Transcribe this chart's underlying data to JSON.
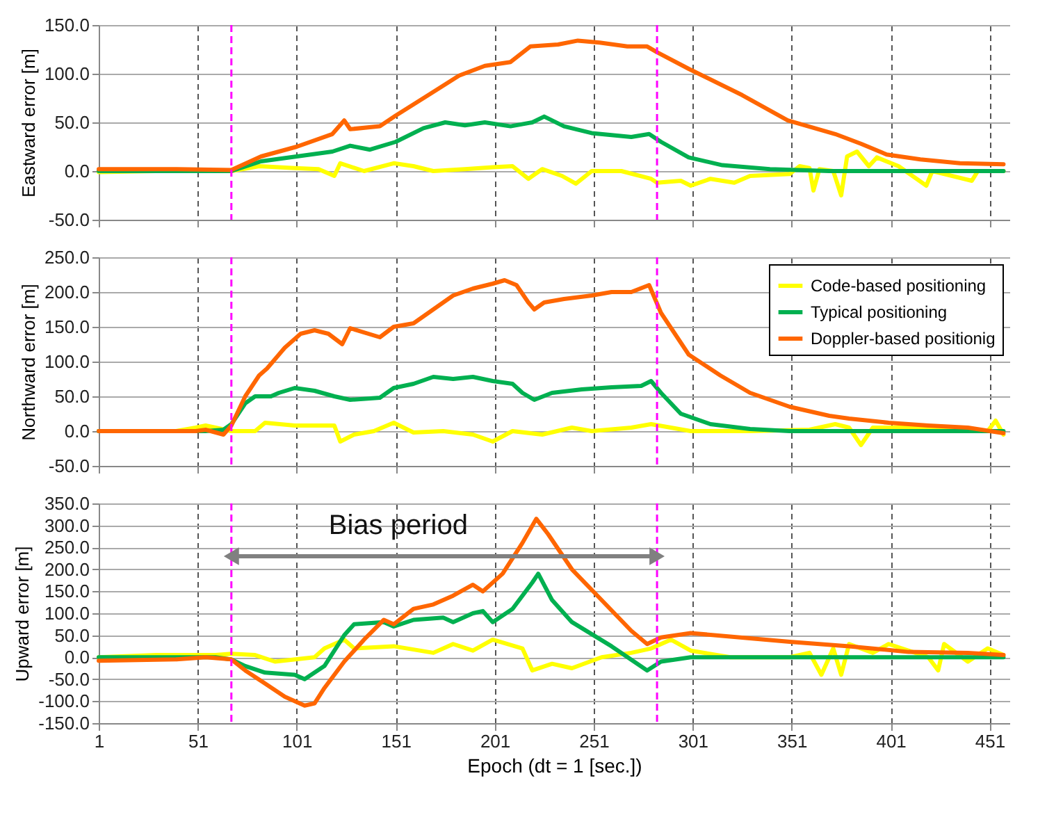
{
  "chart_data": [
    {
      "type": "line",
      "ylabel": "Eastward error [m]",
      "xlim": [
        1,
        461
      ],
      "xticks": [
        1,
        51,
        101,
        151,
        201,
        251,
        301,
        351,
        401,
        451
      ],
      "ylim": [
        -50,
        150
      ],
      "yticks": [
        {
          "value": -50,
          "label": "-50.0"
        },
        {
          "value": 0,
          "label": "0.0"
        },
        {
          "value": 50,
          "label": "50.0"
        },
        {
          "value": 100,
          "label": "100.0"
        },
        {
          "value": 150,
          "label": "150.0"
        }
      ],
      "grid": true,
      "tick_labels": "y",
      "legend": false,
      "ref_lines": [
        {
          "axis": "x",
          "value": 68,
          "color": "#ff00ff",
          "line_style": "dashed"
        },
        {
          "axis": "x",
          "value": 283,
          "color": "#ff00ff",
          "line_style": "dashed"
        }
      ],
      "series": [
        {
          "color": "#ffff00",
          "x": [
            1,
            30,
            68,
            82,
            100,
            112,
            120,
            123,
            135,
            150,
            160,
            170,
            186,
            200,
            210,
            218,
            225,
            235,
            242,
            250,
            265,
            280,
            283,
            295,
            300,
            310,
            322,
            330,
            350,
            355,
            360,
            362,
            365,
            372,
            376,
            379,
            384,
            390,
            394,
            405,
            419,
            422,
            442,
            445,
            458
          ],
          "values": [
            -1,
            0,
            0,
            5,
            3,
            2,
            -5,
            8,
            0,
            8,
            5,
            0,
            2,
            4,
            5,
            -8,
            2,
            -5,
            -13,
            0,
            0,
            -8,
            -12,
            -10,
            -15,
            -8,
            -12,
            -5,
            -3,
            5,
            3,
            -20,
            2,
            0,
            -25,
            15,
            20,
            5,
            14,
            5,
            -15,
            0,
            -10,
            0,
            0
          ]
        },
        {
          "color": "#00b050",
          "x": [
            1,
            68,
            83,
            101,
            119,
            128,
            138,
            151,
            165,
            176,
            186,
            196,
            209,
            220,
            226,
            236,
            250,
            270,
            279,
            285,
            299,
            316,
            340,
            370,
            458
          ],
          "values": [
            0,
            0,
            10,
            15,
            20,
            26,
            22,
            30,
            44,
            50,
            47,
            50,
            46,
            50,
            56,
            46,
            39,
            35,
            38,
            30,
            14,
            6,
            2,
            0,
            0
          ]
        },
        {
          "color": "#ff6600",
          "x": [
            1,
            40,
            68,
            83,
            101,
            119,
            125,
            128,
            143,
            151,
            169,
            183,
            196,
            209,
            219,
            233,
            243,
            254,
            268,
            278,
            283,
            299,
            326,
            349,
            373,
            386,
            399,
            416,
            436,
            458
          ],
          "values": [
            2,
            2,
            1,
            15,
            25,
            38,
            52,
            43,
            46,
            57,
            80,
            98,
            108,
            112,
            128,
            130,
            134,
            132,
            128,
            128,
            122,
            105,
            78,
            52,
            38,
            28,
            17,
            12,
            8,
            7
          ]
        }
      ]
    },
    {
      "type": "line",
      "ylabel": "Northward error [m]",
      "xlim": [
        1,
        461
      ],
      "xticks": [
        1,
        51,
        101,
        151,
        201,
        251,
        301,
        351,
        401,
        451
      ],
      "ylim": [
        -50,
        250
      ],
      "yticks": [
        {
          "value": -50,
          "label": "-50.0"
        },
        {
          "value": 0,
          "label": "0.0"
        },
        {
          "value": 50,
          "label": "50.0"
        },
        {
          "value": 100,
          "label": "100.0"
        },
        {
          "value": 150,
          "label": "150.0"
        },
        {
          "value": 200,
          "label": "200.0"
        },
        {
          "value": 250,
          "label": "250.0"
        }
      ],
      "grid": true,
      "tick_labels": "y",
      "legend": "top right",
      "ref_lines": [
        {
          "axis": "x",
          "value": 68,
          "color": "#ff00ff",
          "line_style": "dashed"
        },
        {
          "axis": "x",
          "value": 283,
          "color": "#ff00ff",
          "line_style": "dashed"
        }
      ],
      "series": [
        {
          "name": "Code-based positioning",
          "color": "#ffff00",
          "x": [
            1,
            40,
            50,
            55,
            60,
            68,
            80,
            85,
            100,
            120,
            123,
            130,
            140,
            150,
            160,
            175,
            190,
            200,
            210,
            225,
            240,
            250,
            270,
            280,
            290,
            300,
            330,
            360,
            373,
            380,
            386,
            392,
            420,
            450,
            454,
            458
          ],
          "values": [
            0,
            0,
            5,
            8,
            5,
            0,
            0,
            12,
            8,
            8,
            -15,
            -5,
            0,
            12,
            -2,
            0,
            -5,
            -15,
            0,
            -5,
            5,
            0,
            5,
            10,
            5,
            0,
            0,
            2,
            10,
            5,
            -20,
            5,
            5,
            0,
            15,
            -5
          ]
        },
        {
          "name": "Typical positioning",
          "color": "#00b050",
          "x": [
            1,
            55,
            64,
            68,
            75,
            80,
            88,
            92,
            100,
            110,
            120,
            128,
            143,
            150,
            160,
            170,
            180,
            190,
            200,
            210,
            215,
            221,
            230,
            245,
            260,
            275,
            280,
            285,
            295,
            310,
            330,
            350,
            458
          ],
          "values": [
            0,
            0,
            2,
            10,
            40,
            50,
            50,
            55,
            62,
            58,
            50,
            45,
            48,
            62,
            68,
            78,
            75,
            78,
            72,
            68,
            55,
            45,
            55,
            60,
            63,
            65,
            72,
            55,
            25,
            10,
            3,
            0,
            0
          ]
        },
        {
          "name": "Doppler-based positionig",
          "color": "#ff6600",
          "x": [
            1,
            50,
            55,
            64,
            68,
            75,
            82,
            86,
            95,
            103,
            110,
            117,
            124,
            128,
            143,
            150,
            160,
            170,
            180,
            190,
            200,
            206,
            212,
            218,
            221,
            226,
            236,
            250,
            260,
            270,
            279,
            285,
            299,
            315,
            330,
            350,
            370,
            380,
            400,
            420,
            440,
            458
          ],
          "values": [
            0,
            0,
            2,
            -5,
            8,
            50,
            80,
            90,
            120,
            140,
            145,
            140,
            125,
            148,
            135,
            150,
            155,
            175,
            195,
            205,
            212,
            217,
            210,
            185,
            175,
            185,
            190,
            195,
            200,
            200,
            210,
            170,
            110,
            80,
            55,
            35,
            22,
            18,
            12,
            8,
            5,
            -3
          ]
        }
      ]
    },
    {
      "type": "line",
      "ylabel": "Upward error [m]",
      "xlabel": "Epoch (dt = 1 [sec.])",
      "xlim": [
        1,
        461
      ],
      "xticks": [
        1,
        51,
        101,
        151,
        201,
        251,
        301,
        351,
        401,
        451
      ],
      "ylim": [
        -150,
        350
      ],
      "yticks": [
        {
          "value": -150,
          "label": "-150.0"
        },
        {
          "value": -100,
          "label": "-100.0"
        },
        {
          "value": -50,
          "label": "-50.0"
        },
        {
          "value": 0,
          "label": "0.0"
        },
        {
          "value": 50,
          "label": "50.0"
        },
        {
          "value": 100,
          "label": "100.0"
        },
        {
          "value": 150,
          "label": "150.0"
        },
        {
          "value": 200,
          "label": "200.0"
        },
        {
          "value": 250,
          "label": "250.0"
        },
        {
          "value": 300,
          "label": "300.0"
        },
        {
          "value": 350,
          "label": "350.0"
        }
      ],
      "grid": true,
      "legend": false,
      "annotations": [
        "Bias period"
      ],
      "ref_lines": [
        {
          "axis": "x",
          "value": 68,
          "color": "#ff00ff",
          "line_style": "dashed"
        },
        {
          "axis": "x",
          "value": 283,
          "color": "#ff00ff",
          "line_style": "dashed"
        }
      ],
      "series": [
        {
          "color": "#ffff00",
          "x": [
            1,
            30,
            60,
            68,
            80,
            90,
            110,
            115,
            125,
            130,
            150,
            170,
            180,
            190,
            200,
            215,
            220,
            230,
            240,
            255,
            270,
            280,
            290,
            300,
            320,
            350,
            360,
            366,
            372,
            376,
            380,
            392,
            400,
            420,
            425,
            428,
            440,
            450,
            458
          ],
          "values": [
            0,
            5,
            5,
            8,
            5,
            -10,
            0,
            20,
            40,
            20,
            25,
            10,
            30,
            15,
            40,
            20,
            -30,
            -15,
            -25,
            0,
            10,
            20,
            40,
            15,
            0,
            0,
            10,
            -40,
            20,
            -40,
            30,
            10,
            30,
            0,
            -30,
            30,
            -10,
            20,
            5
          ]
        },
        {
          "color": "#00b050",
          "x": [
            1,
            60,
            68,
            75,
            85,
            100,
            105,
            115,
            125,
            130,
            145,
            150,
            160,
            175,
            180,
            190,
            195,
            200,
            210,
            220,
            223,
            230,
            240,
            260,
            278,
            285,
            300,
            458
          ],
          "values": [
            0,
            0,
            -5,
            -20,
            -35,
            -40,
            -50,
            -20,
            50,
            75,
            80,
            70,
            85,
            90,
            80,
            100,
            105,
            80,
            110,
            170,
            190,
            130,
            80,
            25,
            -30,
            -10,
            0,
            0
          ]
        },
        {
          "color": "#ff6600",
          "x": [
            1,
            40,
            55,
            68,
            75,
            85,
            95,
            105,
            110,
            115,
            125,
            135,
            145,
            150,
            160,
            170,
            180,
            190,
            195,
            205,
            215,
            222,
            228,
            240,
            255,
            270,
            278,
            285,
            300,
            350,
            380,
            410,
            440,
            458
          ],
          "values": [
            -8,
            -5,
            0,
            -5,
            -30,
            -60,
            -90,
            -110,
            -105,
            -70,
            -10,
            40,
            85,
            75,
            110,
            120,
            140,
            165,
            150,
            190,
            260,
            315,
            280,
            200,
            130,
            60,
            30,
            45,
            55,
            35,
            25,
            12,
            10,
            5
          ]
        }
      ]
    }
  ]
}
